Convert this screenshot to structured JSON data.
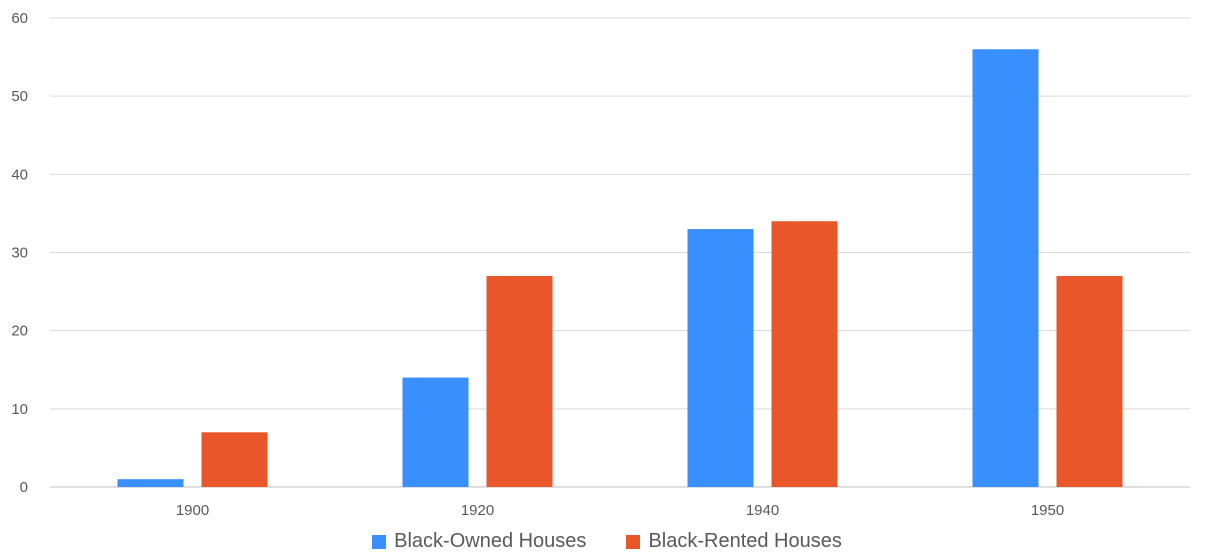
{
  "chart_data": {
    "type": "bar",
    "categories": [
      "1900",
      "1920",
      "1940",
      "1950"
    ],
    "series": [
      {
        "name": "Black-Owned Houses",
        "values": [
          1,
          14,
          33,
          56
        ],
        "color": "#3a8ffe"
      },
      {
        "name": "Black-Rented Houses",
        "values": [
          7,
          27,
          34,
          27
        ],
        "color": "#e8562a"
      }
    ],
    "ylim": [
      0,
      60
    ],
    "y_ticks": [
      "0",
      "10",
      "20",
      "30",
      "40",
      "50",
      "60"
    ],
    "grid": true,
    "legend_position": "bottom",
    "title": "",
    "xlabel": "",
    "ylabel": ""
  }
}
